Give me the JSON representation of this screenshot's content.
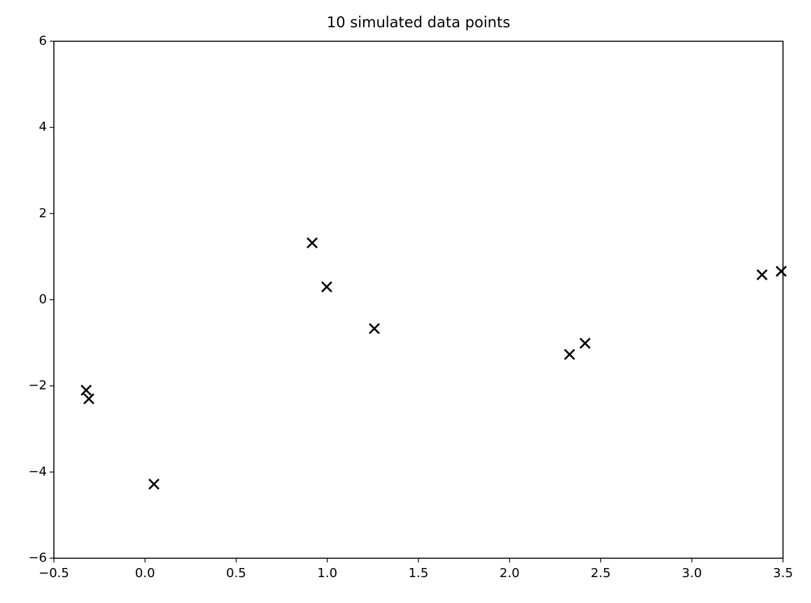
{
  "chart_data": {
    "type": "scatter",
    "title": "10 simulated data points",
    "x": [
      -0.323,
      -0.308,
      0.049,
      0.917,
      0.997,
      1.258,
      2.329,
      2.414,
      3.385,
      3.49
    ],
    "series": [
      {
        "color": "#000000",
        "marker": "x",
        "values": [
          -2.1,
          -2.3,
          -4.28,
          1.32,
          0.3,
          -0.67,
          -1.27,
          -1.01,
          0.58,
          0.66
        ]
      }
    ],
    "xlim": [
      -0.5,
      3.5
    ],
    "xticks": [
      {
        "value": -0.5,
        "label": "−0.5"
      },
      {
        "value": 0,
        "label": "0.0"
      },
      0.5,
      {
        "value": 1,
        "label": "1.0"
      },
      1.5,
      {
        "value": 2,
        "label": "2.0"
      },
      2.5,
      {
        "value": 3,
        "label": "3.0"
      },
      3.5
    ],
    "ylim": [
      -6,
      6
    ],
    "yticks": [
      {
        "value": -6,
        "label": "−6"
      },
      {
        "value": -4,
        "label": "−4"
      },
      {
        "value": -2,
        "label": "−2"
      },
      0,
      2,
      4,
      6
    ],
    "grid": false
  }
}
